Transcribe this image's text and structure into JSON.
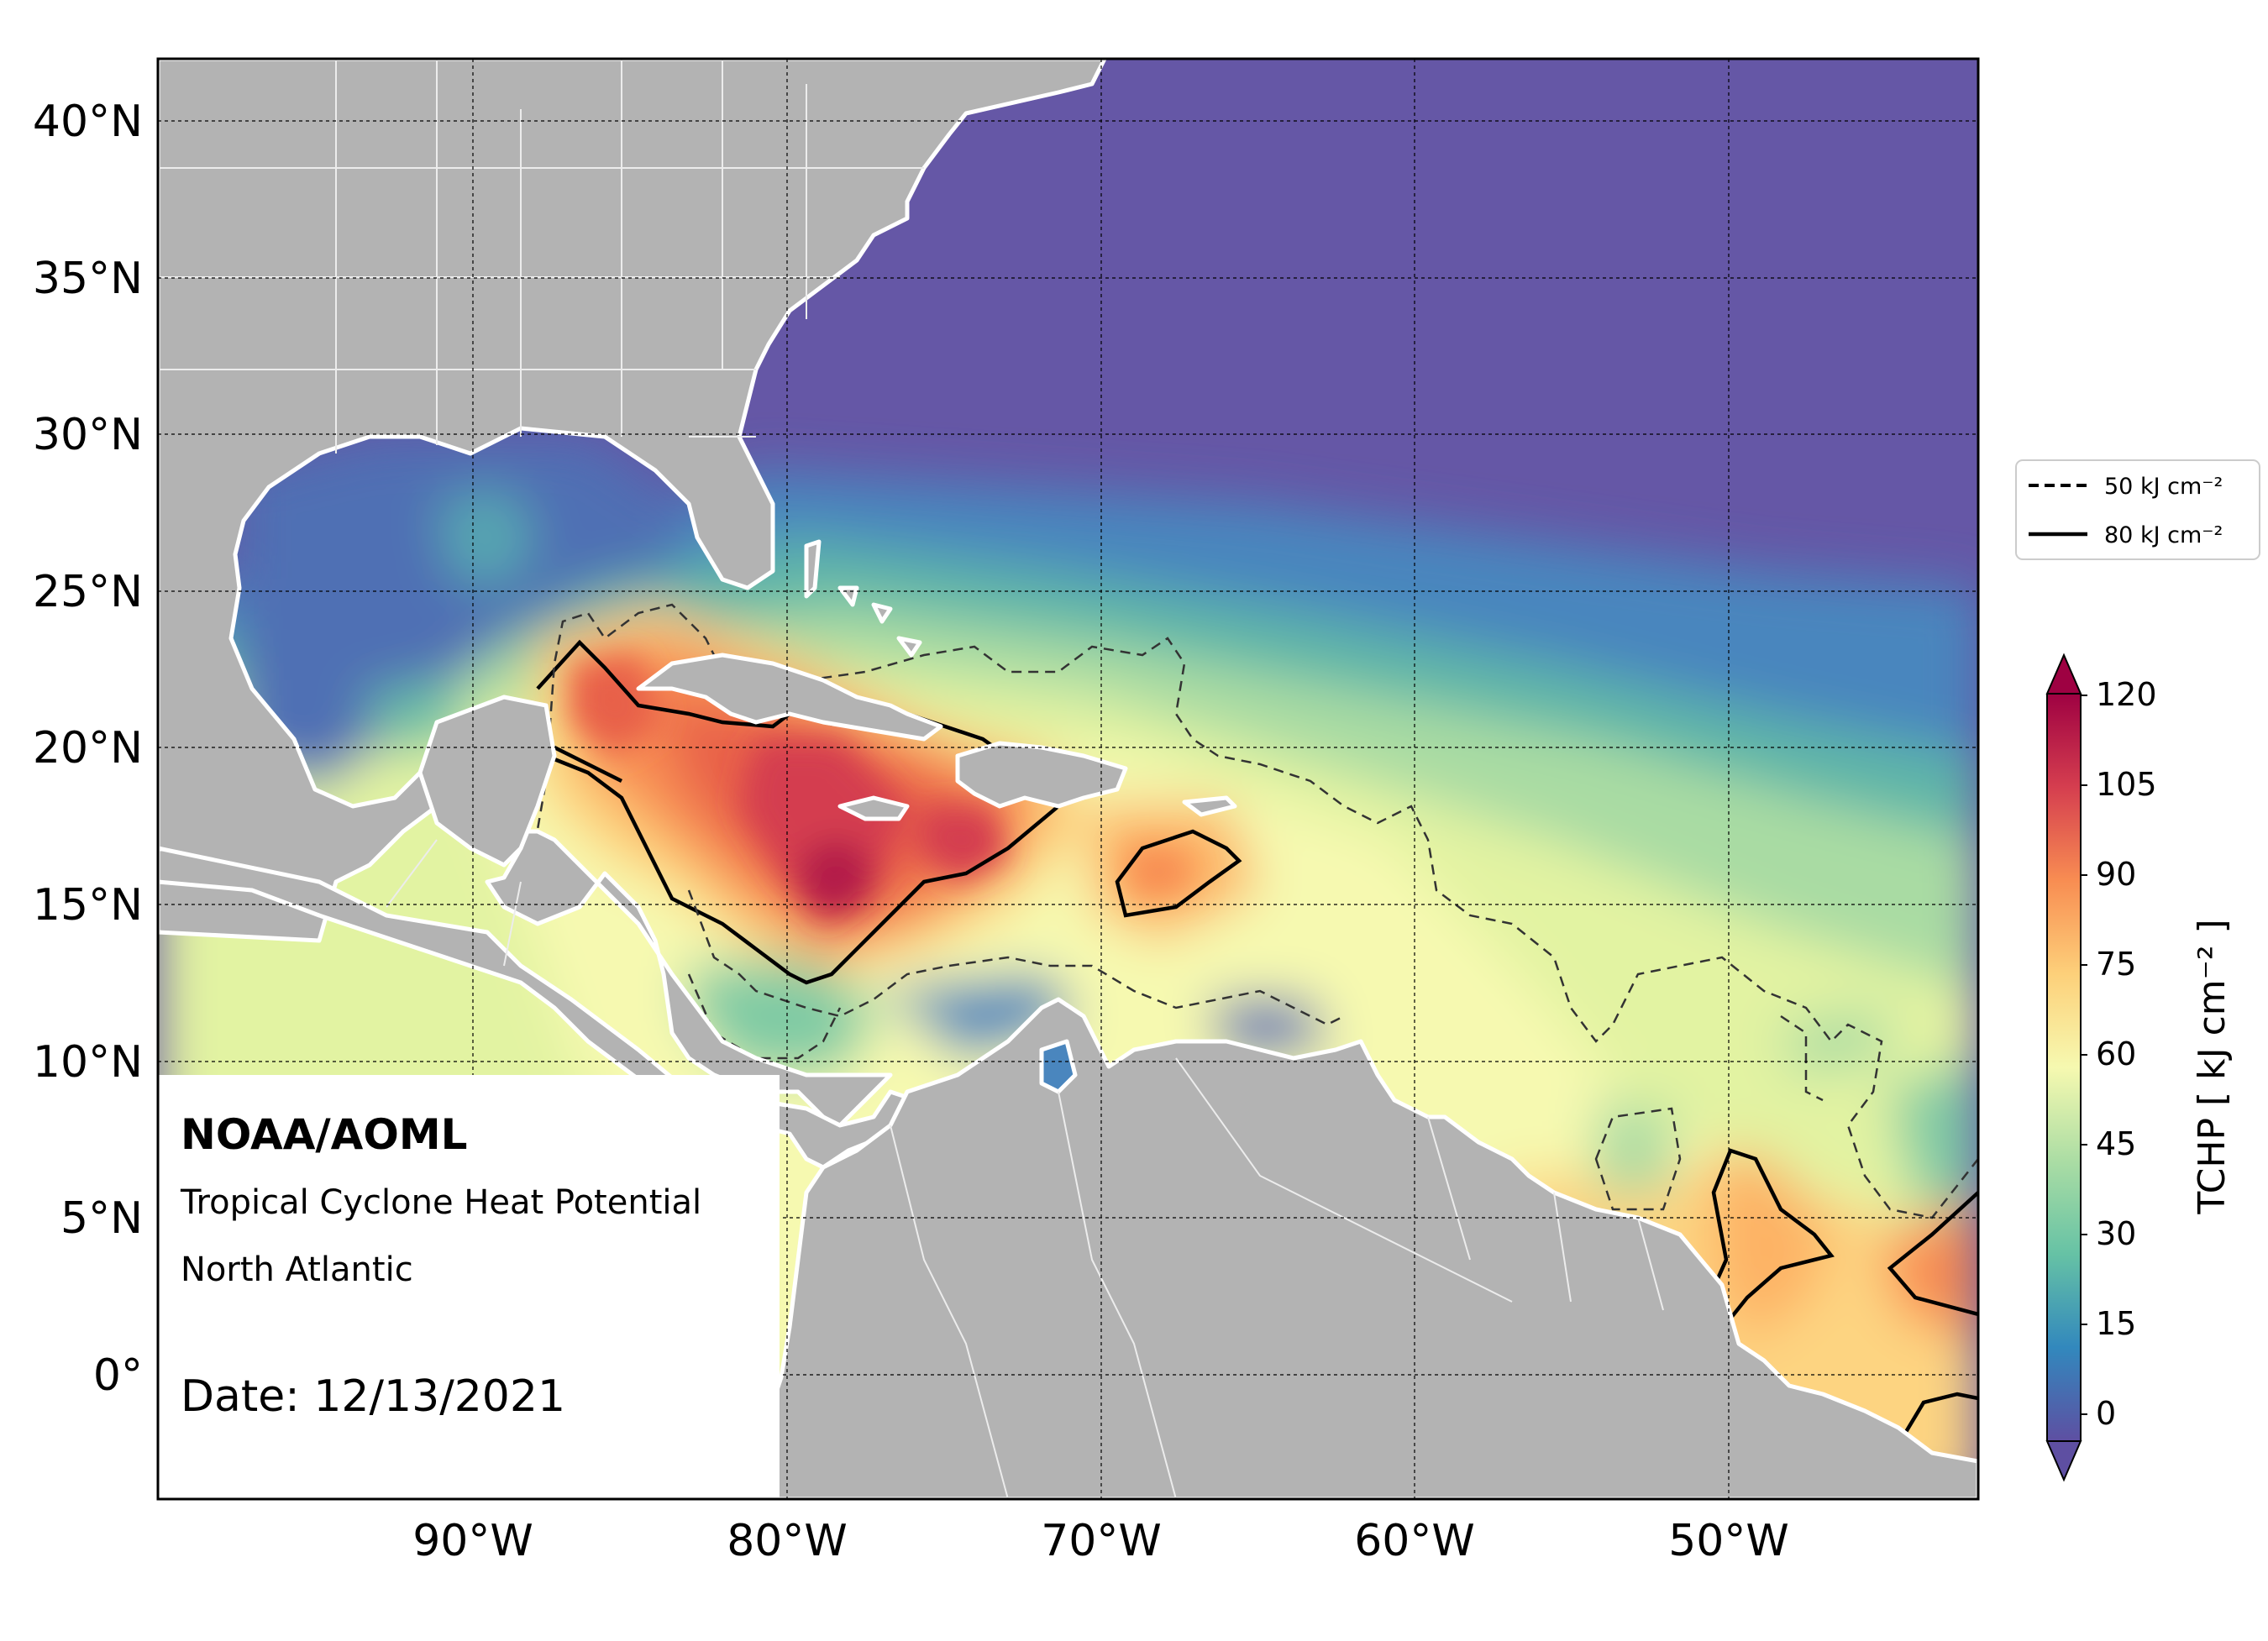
{
  "map": {
    "title_org": "NOAA/AOML",
    "product": "Tropical Cyclone Heat Potential",
    "region": "North Atlantic",
    "date_text": "Date: 12/13/2021",
    "lat_labels": [
      "40°N",
      "35°N",
      "30°N",
      "25°N",
      "20°N",
      "15°N",
      "10°N",
      "5°N",
      "0°"
    ],
    "lon_labels": [
      "90°W",
      "80°W",
      "70°W",
      "60°W",
      "50°W"
    ],
    "extent": {
      "lon_min": -100,
      "lon_max": -42,
      "lat_min": -4,
      "lat_max": 42
    },
    "land_color": "#b3b3b3",
    "border_color": "#ffffff"
  },
  "legend": {
    "items": [
      {
        "label": "50 kJ cm⁻²",
        "style": "dashed"
      },
      {
        "label": "80 kJ cm⁻²",
        "style": "solid"
      }
    ]
  },
  "colorbar": {
    "title": "TCHP [ kJ cm⁻² ]",
    "ticks": [
      "120",
      "105",
      "90",
      "75",
      "60",
      "45",
      "30",
      "15",
      "0"
    ],
    "extend": "both",
    "colors": [
      "#6a52a3",
      "#5e72b6",
      "#3f8fc0",
      "#54aead",
      "#80cba4",
      "#acdca4",
      "#d4ed9c",
      "#f1f9a9",
      "#fdeea0",
      "#fdd481",
      "#fdb265",
      "#f88d52",
      "#e8604a",
      "#d43d4f",
      "#b41c4a",
      "#9e0142"
    ]
  }
}
